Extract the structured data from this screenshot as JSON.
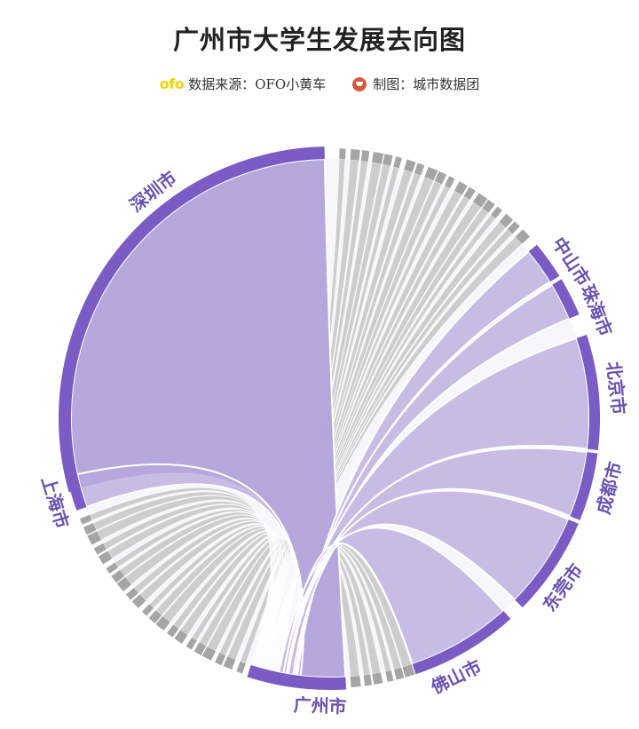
{
  "title": "广州市大学生发展去向图",
  "credits": {
    "logo_text": "ofo",
    "source": "数据来源：OFO小黄车",
    "maker": "制图：城市数据团"
  },
  "colors": {
    "accent": "#7b5cc4",
    "ribbon_light": "#b8a7dc",
    "ribbon_gray": "#c6c6c6",
    "ring_gray": "#a5a5a5"
  },
  "chart_data": {
    "type": "chord",
    "title": "广州市大学生发展去向图",
    "source_node": "广州市",
    "labeled_destinations": [
      "深圳市",
      "上海市",
      "中山市",
      "珠海市",
      "北京市",
      "成都市",
      "东莞市",
      "佛山市"
    ],
    "flows": [
      {
        "from": "广州市",
        "to": "深圳市",
        "share": 0.285
      },
      {
        "from": "广州市",
        "to": "上海市",
        "share": 0.022
      },
      {
        "from": "广州市",
        "to": "中山市",
        "share": 0.012
      },
      {
        "from": "广州市",
        "to": "珠海市",
        "share": 0.014
      },
      {
        "from": "广州市",
        "to": "北京市",
        "share": 0.032
      },
      {
        "from": "广州市",
        "to": "成都市",
        "share": 0.011
      },
      {
        "from": "广州市",
        "to": "东莞市",
        "share": 0.02
      },
      {
        "from": "广州市",
        "to": "佛山市",
        "share": 0.028
      }
    ],
    "other_destinations_count": 46
  }
}
